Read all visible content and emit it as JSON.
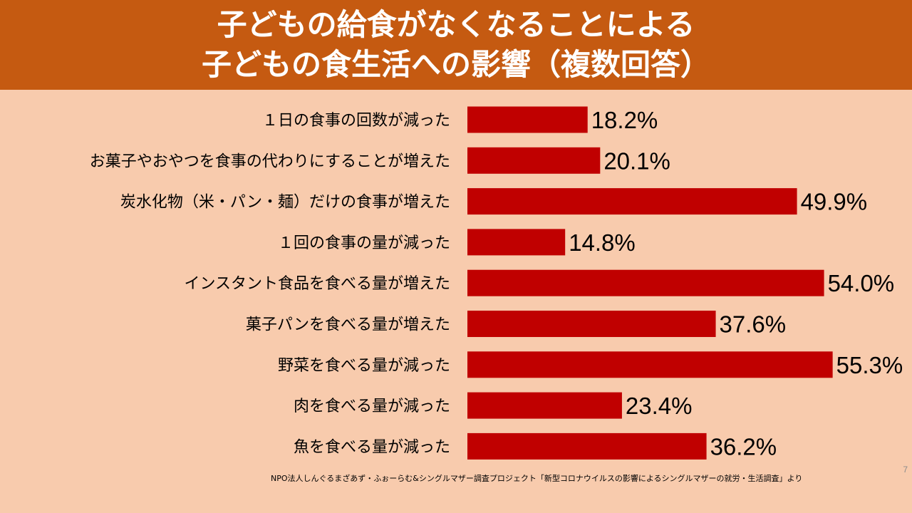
{
  "page": {
    "number": "7",
    "source": "NPO法人しんぐるまざあず・ふぉーらむ&シングルマザー調査プロジェクト「新型コロナウイルスの影響によるシングルマザーの就労・生活調査」より"
  },
  "colors": {
    "background": "#f8cbad",
    "title_band": "#c55a11",
    "bar": "#c00000"
  },
  "chart_data": {
    "type": "bar",
    "orientation": "horizontal",
    "title": [
      "子どもの給食がなくなることによる",
      "子どもの食生活への影響（複数回答）"
    ],
    "categories": [
      "１日の食事の回数が減った",
      "お菓子やおやつを食事の代わりにすることが増えた",
      "炭水化物（米・パン・麺）だけの食事が増えた",
      "１回の食事の量が減った",
      "インスタント食品を食べる量が増えた",
      "菓子パンを食べる量が増えた",
      "野菜を食べる量が減った",
      "肉を食べる量が減った",
      "魚を食べる量が減った"
    ],
    "values": [
      18.2,
      20.1,
      49.9,
      14.8,
      54.0,
      37.6,
      55.3,
      23.4,
      36.2
    ],
    "value_labels": [
      "18.2%",
      "20.1%",
      "49.9%",
      "14.8%",
      "54.0%",
      "37.6%",
      "55.3%",
      "23.4%",
      "36.2%"
    ],
    "unit": "%",
    "grid": false,
    "legend": false
  }
}
